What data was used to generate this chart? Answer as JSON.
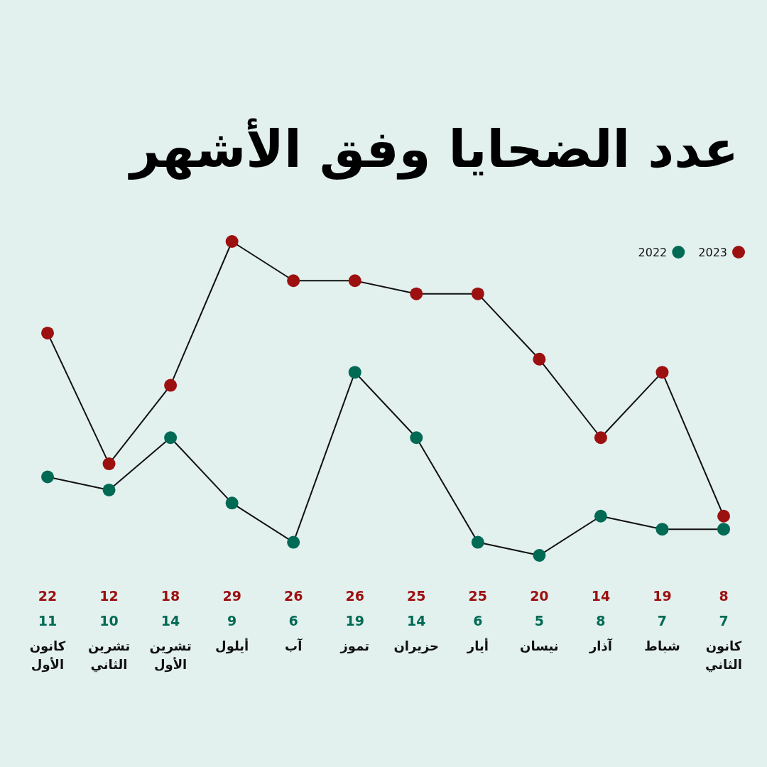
{
  "chart_data": {
    "type": "line",
    "title": "عدد الضحايا وفق الأشهر",
    "categories": [
      "كانون الأول",
      "تشرين الثاني",
      "تشرين الأول",
      "أيلول",
      "آب",
      "تموز",
      "حزيران",
      "أيار",
      "نيسان",
      "آذار",
      "شباط",
      "كانون الثاني"
    ],
    "series": [
      {
        "name": "2023",
        "color": "#9c1010",
        "values": [
          22,
          12,
          18,
          29,
          26,
          26,
          25,
          25,
          20,
          14,
          19,
          8
        ]
      },
      {
        "name": "2022",
        "color": "#006a55",
        "values": [
          11,
          10,
          14,
          9,
          6,
          19,
          14,
          6,
          5,
          8,
          7,
          7
        ]
      }
    ],
    "data_labels": true,
    "marker": "circle",
    "line_style": "solid",
    "legend": "top right",
    "tick_labels": "x"
  }
}
